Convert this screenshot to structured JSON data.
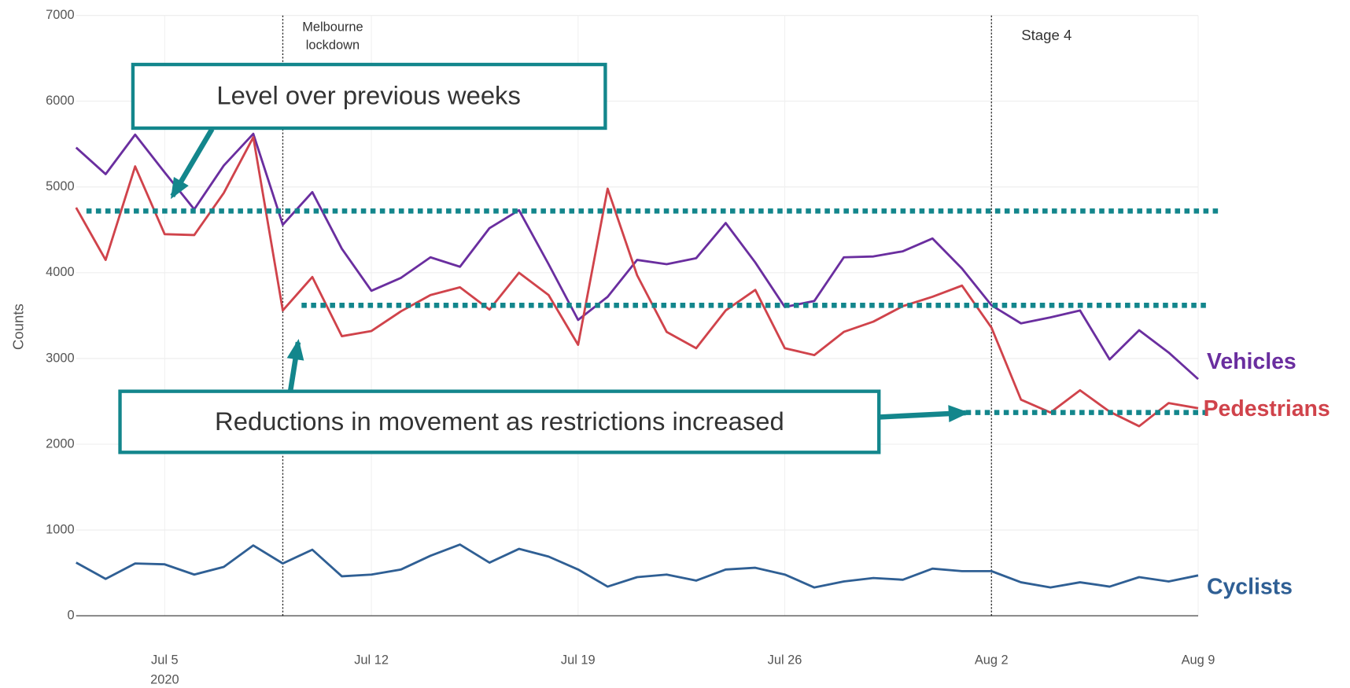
{
  "chart_data": {
    "type": "line",
    "y_label": "Counts",
    "xlim": [
      "2020-07-02",
      "2020-08-09"
    ],
    "ylim": [
      0,
      7000
    ],
    "yticks": [
      0,
      1000,
      2000,
      3000,
      4000,
      5000,
      6000,
      7000
    ],
    "xticks": [
      {
        "value": "2020-07-05",
        "label": "Jul 5",
        "sublabel": "2020"
      },
      {
        "value": "2020-07-12",
        "label": "Jul 12"
      },
      {
        "value": "2020-07-19",
        "label": "Jul 19"
      },
      {
        "value": "2020-07-26",
        "label": "Jul 26"
      },
      {
        "value": "2020-08-02",
        "label": "Aug 2"
      },
      {
        "value": "2020-08-09",
        "label": "Aug 9"
      }
    ],
    "grid": true,
    "x": [
      "2020-07-02",
      "2020-07-03",
      "2020-07-04",
      "2020-07-05",
      "2020-07-06",
      "2020-07-07",
      "2020-07-08",
      "2020-07-09",
      "2020-07-10",
      "2020-07-11",
      "2020-07-12",
      "2020-07-13",
      "2020-07-14",
      "2020-07-15",
      "2020-07-16",
      "2020-07-17",
      "2020-07-18",
      "2020-07-19",
      "2020-07-20",
      "2020-07-21",
      "2020-07-22",
      "2020-07-23",
      "2020-07-24",
      "2020-07-25",
      "2020-07-26",
      "2020-07-27",
      "2020-07-28",
      "2020-07-29",
      "2020-07-30",
      "2020-07-31",
      "2020-08-01",
      "2020-08-02",
      "2020-08-03",
      "2020-08-04",
      "2020-08-05",
      "2020-08-06",
      "2020-08-07",
      "2020-08-08",
      "2020-08-09"
    ],
    "series": [
      {
        "name": "Vehicles",
        "color": "#6a2e9f",
        "values": [
          5460,
          5150,
          5610,
          5170,
          4740,
          5250,
          5620,
          4560,
          4940,
          4280,
          3790,
          3940,
          4180,
          4070,
          4520,
          4730,
          4100,
          3450,
          3720,
          4150,
          4100,
          4170,
          4580,
          4120,
          3600,
          3670,
          4180,
          4190,
          4250,
          4400,
          4050,
          3620,
          3410,
          3480,
          3560,
          2990,
          3330,
          3070,
          2760
        ]
      },
      {
        "name": "Pedestrians",
        "color": "#d0434b",
        "values": [
          4760,
          4150,
          5240,
          4450,
          4440,
          4930,
          5580,
          3560,
          3950,
          3260,
          3320,
          3550,
          3740,
          3830,
          3570,
          4000,
          3740,
          3160,
          4980,
          3970,
          3310,
          3120,
          3560,
          3800,
          3120,
          3040,
          3310,
          3430,
          3610,
          3720,
          3850,
          3360,
          2520,
          2370,
          2630,
          2380,
          2210,
          2480,
          2420
        ]
      },
      {
        "name": "Cyclists",
        "color": "#2f5f94",
        "values": [
          620,
          430,
          610,
          600,
          480,
          570,
          820,
          610,
          770,
          460,
          480,
          540,
          700,
          830,
          620,
          780,
          690,
          540,
          340,
          450,
          480,
          410,
          540,
          560,
          480,
          330,
          400,
          440,
          420,
          550,
          520,
          520,
          390,
          330,
          390,
          340,
          450,
          400,
          470
        ]
      }
    ],
    "vlines": [
      {
        "x": "2020-07-09",
        "text": [
          "Melbourne",
          "lockdown"
        ]
      },
      {
        "x": "2020-08-02",
        "text": [
          "Stage 4"
        ]
      }
    ],
    "hlines": [
      {
        "value": 4720
      },
      {
        "value": 3620
      },
      {
        "value": 2370
      }
    ],
    "reference_color": "#13868c",
    "callouts": [
      "Level over previous weeks",
      "Reductions in movement as restrictions increased"
    ]
  }
}
